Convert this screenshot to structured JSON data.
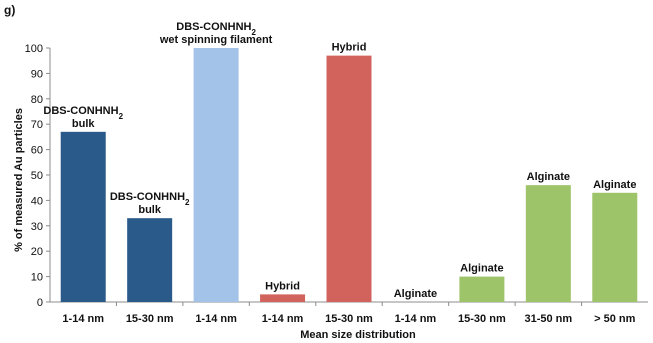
{
  "panel_label": "g)",
  "colors": {
    "dbs_bulk": "#2a5a8a",
    "dbs_filament": "#a3c4e8",
    "hybrid": "#d2625c",
    "alginate": "#9ec46a",
    "axis": "#8c8c8c",
    "text": "#111111"
  },
  "chart_data": {
    "type": "bar",
    "title": "",
    "xlabel": "Mean size distribution",
    "ylabel": "% of measured Au particles",
    "ylim": [
      0,
      100
    ],
    "yticks": [
      0,
      10,
      20,
      30,
      40,
      50,
      60,
      70,
      80,
      90,
      100
    ],
    "grid": false,
    "legend": "none",
    "bars": [
      {
        "category": "1-14 nm",
        "value": 67,
        "color_key": "dbs_bulk",
        "label_lines": [
          "DBS-CONHNH",
          "bulk"
        ],
        "label_sub": "2"
      },
      {
        "category": "15-30 nm",
        "value": 33,
        "color_key": "dbs_bulk",
        "label_lines": [
          "DBS-CONHNH",
          "bulk"
        ],
        "label_sub": "2"
      },
      {
        "category": "1-14 nm",
        "value": 100,
        "color_key": "dbs_filament",
        "label_lines": [
          "DBS-CONHNH",
          "wet spinning filament"
        ],
        "label_sub": "2"
      },
      {
        "category": "1-14 nm",
        "value": 3,
        "color_key": "hybrid",
        "label_lines": [
          "Hybrid"
        ],
        "label_sub": ""
      },
      {
        "category": "15-30 nm",
        "value": 97,
        "color_key": "hybrid",
        "label_lines": [
          "Hybrid"
        ],
        "label_sub": ""
      },
      {
        "category": "1-14 nm",
        "value": 0,
        "color_key": "alginate",
        "label_lines": [
          "Alginate"
        ],
        "label_sub": ""
      },
      {
        "category": "15-30 nm",
        "value": 10,
        "color_key": "alginate",
        "label_lines": [
          "Alginate"
        ],
        "label_sub": ""
      },
      {
        "category": "31-50 nm",
        "value": 46,
        "color_key": "alginate",
        "label_lines": [
          "Alginate"
        ],
        "label_sub": ""
      },
      {
        "category": "> 50 nm",
        "value": 43,
        "color_key": "alginate",
        "label_lines": [
          "Alginate"
        ],
        "label_sub": ""
      }
    ]
  }
}
